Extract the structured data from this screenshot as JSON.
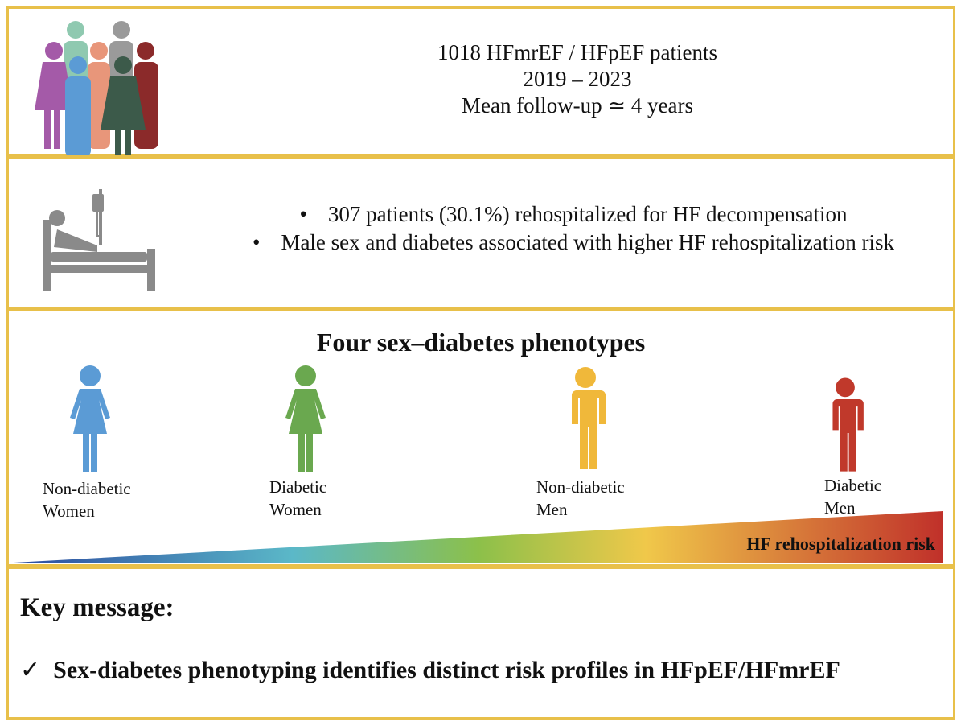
{
  "cohort": {
    "line1": "1018 HFmrEF / HFpEF patients",
    "line2": "2019 – 2023",
    "line3": "Mean follow-up ≃ 4 years",
    "icon": "people-group-icon"
  },
  "rehospitalization": {
    "icon": "hospital-bed-icon",
    "bullets": [
      "307 patients (30.1%) rehospitalized for HF decompensation",
      "Male sex and diabetes associated with higher HF rehospitalization risk"
    ]
  },
  "phenotypes": {
    "title": "Four sex–diabetes phenotypes",
    "groups": [
      {
        "line1": "Non-diabetic",
        "line2": "Women",
        "color": "#5b9bd5",
        "icon": "woman-icon"
      },
      {
        "line1": "Diabetic",
        "line2": "Women",
        "color": "#6aa84f",
        "icon": "woman-icon"
      },
      {
        "line1": "Non-diabetic",
        "line2": "Men",
        "color": "#f0b83a",
        "icon": "man-icon"
      },
      {
        "line1": "Diabetic",
        "line2": "Men",
        "color": "#c0392b",
        "icon": "man-icon"
      }
    ],
    "risk_label": "HF rehospitalization risk",
    "gradient_colors": [
      "#2b4aa0",
      "#5bb8c8",
      "#8cc04a",
      "#f0c84a",
      "#c0302a"
    ]
  },
  "key": {
    "title": "Key message:",
    "check": "✓",
    "message": "Sex-diabetes phenotyping identifies distinct risk profiles in HFpEF/HFmrEF"
  }
}
